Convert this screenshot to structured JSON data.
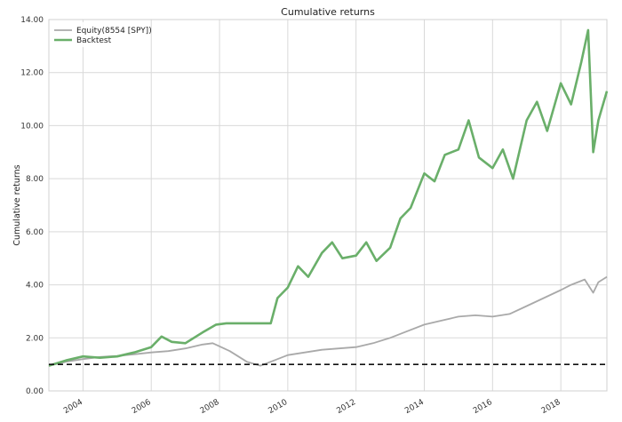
{
  "chart_data": {
    "type": "line",
    "title": "Cumulative returns",
    "xlabel": "",
    "ylabel": "Cumulative returns",
    "xlim": [
      2003.0,
      2019.35
    ],
    "ylim": [
      0.0,
      14.0
    ],
    "x_ticks": [
      2004,
      2006,
      2008,
      2010,
      2012,
      2014,
      2016,
      2018
    ],
    "x_tick_labels": [
      "2004",
      "2006",
      "2008",
      "2010",
      "2012",
      "2014",
      "2016",
      "2018"
    ],
    "y_ticks": [
      0,
      2,
      4,
      6,
      8,
      10,
      12,
      14
    ],
    "y_tick_labels": [
      "0.00",
      "2.00",
      "4.00",
      "6.00",
      "8.00",
      "10.00",
      "12.00",
      "14.00"
    ],
    "grid": true,
    "legend_position": "top-left",
    "baseline": {
      "y": 1.0,
      "style": "dashed",
      "color": "#111111"
    },
    "series": [
      {
        "name": "Equity(8554 [SPY])",
        "color": "#a9a9a9",
        "x": [
          2003.0,
          2003.5,
          2004.0,
          2004.5,
          2005.0,
          2005.5,
          2006.0,
          2006.5,
          2007.0,
          2007.5,
          2007.8,
          2008.3,
          2008.8,
          2009.2,
          2009.6,
          2010.0,
          2010.5,
          2011.0,
          2011.5,
          2012.0,
          2012.5,
          2013.0,
          2013.5,
          2014.0,
          2014.5,
          2015.0,
          2015.5,
          2016.0,
          2016.5,
          2017.0,
          2017.5,
          2018.0,
          2018.3,
          2018.7,
          2018.95,
          2019.1,
          2019.35
        ],
        "y": [
          0.95,
          1.1,
          1.2,
          1.28,
          1.32,
          1.38,
          1.45,
          1.5,
          1.6,
          1.75,
          1.8,
          1.5,
          1.1,
          0.95,
          1.15,
          1.35,
          1.45,
          1.55,
          1.6,
          1.65,
          1.8,
          2.0,
          2.25,
          2.5,
          2.65,
          2.8,
          2.85,
          2.8,
          2.9,
          3.2,
          3.5,
          3.8,
          4.0,
          4.2,
          3.7,
          4.1,
          4.3
        ]
      },
      {
        "name": "Backtest",
        "color": "#6aaf6a",
        "x": [
          2003.0,
          2003.5,
          2004.0,
          2004.5,
          2005.0,
          2005.5,
          2006.0,
          2006.3,
          2006.6,
          2007.0,
          2007.5,
          2007.9,
          2008.2,
          2008.6,
          2009.0,
          2009.5,
          2009.7,
          2010.0,
          2010.3,
          2010.6,
          2011.0,
          2011.3,
          2011.6,
          2012.0,
          2012.3,
          2012.6,
          2013.0,
          2013.3,
          2013.6,
          2014.0,
          2014.3,
          2014.6,
          2015.0,
          2015.3,
          2015.6,
          2016.0,
          2016.3,
          2016.6,
          2017.0,
          2017.3,
          2017.6,
          2018.0,
          2018.3,
          2018.6,
          2018.8,
          2018.95,
          2019.1,
          2019.35
        ],
        "y": [
          0.95,
          1.15,
          1.3,
          1.25,
          1.3,
          1.45,
          1.65,
          2.05,
          1.85,
          1.8,
          2.2,
          2.5,
          2.55,
          2.55,
          2.55,
          2.55,
          3.5,
          3.9,
          4.7,
          4.3,
          5.2,
          5.6,
          5.0,
          5.1,
          5.6,
          4.9,
          5.4,
          6.5,
          6.9,
          8.2,
          7.9,
          8.9,
          9.1,
          10.2,
          8.8,
          8.4,
          9.1,
          8.0,
          10.2,
          10.9,
          9.8,
          11.6,
          10.8,
          12.4,
          13.6,
          9.0,
          10.2,
          11.3
        ]
      }
    ]
  }
}
